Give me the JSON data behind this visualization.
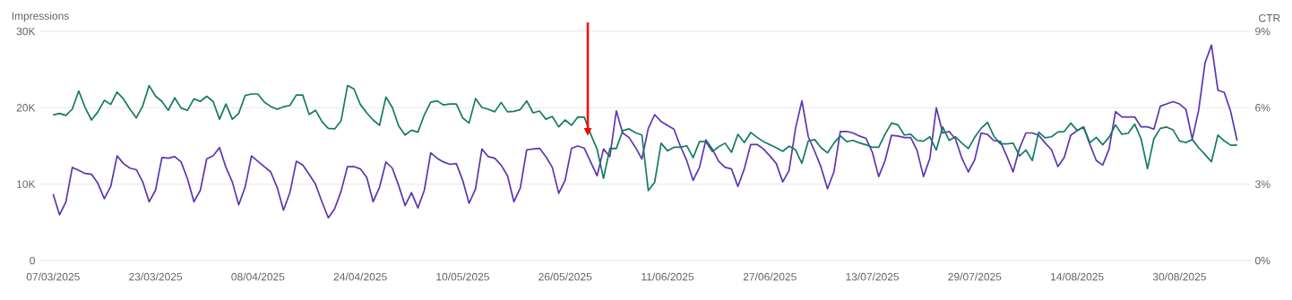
{
  "chart_data": {
    "type": "line",
    "ylabel": "Impressions",
    "y2label": "CTR",
    "x": [
      "2025-03-07",
      "2025-03-08",
      "2025-03-09",
      "2025-03-10",
      "2025-03-11",
      "2025-03-12",
      "2025-03-13",
      "2025-03-14",
      "2025-03-15",
      "2025-03-16",
      "2025-03-17",
      "2025-03-18",
      "2025-03-19",
      "2025-03-20",
      "2025-03-21",
      "2025-03-22",
      "2025-03-23",
      "2025-03-24",
      "2025-03-25",
      "2025-03-26",
      "2025-03-27",
      "2025-03-28",
      "2025-03-29",
      "2025-03-30",
      "2025-03-31",
      "2025-04-01",
      "2025-04-02",
      "2025-04-03",
      "2025-04-04",
      "2025-04-05",
      "2025-04-06",
      "2025-04-07",
      "2025-04-08",
      "2025-04-09",
      "2025-04-10",
      "2025-04-11",
      "2025-04-12",
      "2025-04-13",
      "2025-04-14",
      "2025-04-15",
      "2025-04-16",
      "2025-04-17",
      "2025-04-18",
      "2025-04-19",
      "2025-04-20",
      "2025-04-21",
      "2025-04-22",
      "2025-04-23",
      "2025-04-24",
      "2025-04-25",
      "2025-04-26",
      "2025-04-27",
      "2025-04-28",
      "2025-04-29",
      "2025-04-30",
      "2025-05-01",
      "2025-05-02",
      "2025-05-03",
      "2025-05-04",
      "2025-05-05",
      "2025-05-06",
      "2025-05-07",
      "2025-05-08",
      "2025-05-09",
      "2025-05-10",
      "2025-05-11",
      "2025-05-12",
      "2025-05-13",
      "2025-05-14",
      "2025-05-15",
      "2025-05-16",
      "2025-05-17",
      "2025-05-18",
      "2025-05-19",
      "2025-05-20",
      "2025-05-21",
      "2025-05-22",
      "2025-05-23",
      "2025-05-24",
      "2025-05-25",
      "2025-05-26",
      "2025-05-27",
      "2025-05-28",
      "2025-05-29",
      "2025-05-30",
      "2025-05-31",
      "2025-06-01",
      "2025-06-02",
      "2025-06-03",
      "2025-06-04",
      "2025-06-05",
      "2025-06-06",
      "2025-06-07",
      "2025-06-08",
      "2025-06-09",
      "2025-06-10",
      "2025-06-11",
      "2025-06-12",
      "2025-06-13",
      "2025-06-14",
      "2025-06-15",
      "2025-06-16",
      "2025-06-17",
      "2025-06-18",
      "2025-06-19",
      "2025-06-20",
      "2025-06-21",
      "2025-06-22",
      "2025-06-23",
      "2025-06-24",
      "2025-06-25",
      "2025-06-26",
      "2025-06-27",
      "2025-06-28",
      "2025-06-29",
      "2025-06-30",
      "2025-07-01",
      "2025-07-02",
      "2025-07-03",
      "2025-07-04",
      "2025-07-05",
      "2025-07-06",
      "2025-07-07",
      "2025-07-08",
      "2025-07-09",
      "2025-07-10",
      "2025-07-11",
      "2025-07-12",
      "2025-07-13",
      "2025-07-14",
      "2025-07-15",
      "2025-07-16",
      "2025-07-17",
      "2025-07-18",
      "2025-07-19",
      "2025-07-20",
      "2025-07-21",
      "2025-07-22",
      "2025-07-23",
      "2025-07-24",
      "2025-07-25",
      "2025-07-26",
      "2025-07-27",
      "2025-07-28",
      "2025-07-29",
      "2025-07-30",
      "2025-07-31",
      "2025-08-01",
      "2025-08-02",
      "2025-08-03",
      "2025-08-04",
      "2025-08-05",
      "2025-08-06",
      "2025-08-07",
      "2025-08-08",
      "2025-08-09",
      "2025-08-10",
      "2025-08-11",
      "2025-08-12",
      "2025-08-13",
      "2025-08-14",
      "2025-08-15",
      "2025-08-16",
      "2025-08-17",
      "2025-08-18",
      "2025-08-19",
      "2025-08-20",
      "2025-08-21",
      "2025-08-22",
      "2025-08-23",
      "2025-08-24",
      "2025-08-25",
      "2025-08-26",
      "2025-08-27",
      "2025-08-28",
      "2025-08-29",
      "2025-08-30",
      "2025-08-31",
      "2025-09-01",
      "2025-09-02",
      "2025-09-03",
      "2025-09-04",
      "2025-09-05",
      "2025-09-06",
      "2025-09-07",
      "2025-09-08"
    ],
    "series": [
      {
        "color": "#5e35b1",
        "values": [
          8700,
          6000,
          7700,
          12200,
          11800,
          11400,
          11300,
          10100,
          8100,
          9700,
          13700,
          12700,
          12100,
          11900,
          10300,
          7700,
          9200,
          13500,
          13400,
          13600,
          12900,
          10700,
          7700,
          9200,
          13300,
          13700,
          14800,
          12200,
          10300,
          7300,
          9600,
          13700,
          13000,
          12300,
          11600,
          9600,
          6600,
          8900,
          13000,
          12500,
          11300,
          10000,
          7700,
          5600,
          6800,
          9100,
          12300,
          12300,
          12000,
          10900,
          7700,
          9600,
          12900,
          12100,
          9800,
          7200,
          8900,
          6900,
          9200,
          14100,
          13400,
          12900,
          12600,
          12700,
          10500,
          7500,
          9400,
          14600,
          13600,
          13400,
          12500,
          11100,
          7700,
          9500,
          14500,
          14600,
          14700,
          13600,
          12200,
          8800,
          10500,
          14700,
          15000,
          14700,
          12900,
          11100,
          14600,
          13600,
          19600,
          16700,
          16100,
          14800,
          13300,
          17300,
          19100,
          18200,
          17700,
          17200,
          15000,
          13100,
          10500,
          12200,
          15800,
          14600,
          13000,
          12200,
          12000,
          9700,
          12000,
          15200,
          15200,
          14600,
          13700,
          12700,
          10300,
          11800,
          17300,
          20900,
          16200,
          14300,
          12200,
          9400,
          11600,
          16900,
          16900,
          16700,
          16300,
          16000,
          14200,
          11000,
          13100,
          16400,
          16300,
          16100,
          16100,
          14400,
          11000,
          13400,
          20000,
          16700,
          16900,
          15900,
          13400,
          11600,
          13200,
          16700,
          16500,
          15700,
          15600,
          13700,
          11600,
          14700,
          16700,
          16700,
          16400,
          15400,
          14500,
          12300,
          13500,
          16400,
          17000,
          17500,
          15200,
          13100,
          12500,
          14600,
          19500,
          18800,
          18800,
          18800,
          17500,
          17500,
          17200,
          20200,
          20500,
          20800,
          20500,
          19800,
          15900,
          19700,
          25900,
          28200,
          22300,
          22000,
          19500,
          15700
        ]
      },
      {
        "color": "#137a63",
        "axis": "y2",
        "values": [
          5.72,
          5.78,
          5.7,
          5.95,
          6.66,
          6.01,
          5.52,
          5.84,
          6.29,
          6.13,
          6.62,
          6.34,
          5.95,
          5.6,
          6.07,
          6.87,
          6.46,
          6.25,
          5.9,
          6.39,
          5.99,
          5.9,
          6.35,
          6.25,
          6.45,
          6.25,
          5.55,
          6.15,
          5.55,
          5.78,
          6.48,
          6.54,
          6.54,
          6.22,
          6.05,
          5.94,
          6.04,
          6.09,
          6.5,
          6.5,
          5.74,
          5.9,
          5.46,
          5.19,
          5.17,
          5.49,
          6.87,
          6.74,
          6.13,
          5.8,
          5.52,
          5.31,
          6.42,
          6.01,
          5.28,
          4.93,
          5.12,
          5.04,
          5.72,
          6.22,
          6.27,
          6.11,
          6.15,
          6.15,
          5.6,
          5.4,
          6.36,
          6.01,
          5.94,
          5.84,
          6.21,
          5.84,
          5.86,
          5.93,
          6.27,
          5.8,
          5.87,
          5.55,
          5.66,
          5.25,
          5.52,
          5.31,
          5.64,
          5.63,
          4.96,
          4.37,
          3.23,
          4.41,
          4.4,
          5.1,
          5.17,
          5.02,
          4.93,
          2.75,
          3.08,
          4.61,
          4.31,
          4.45,
          4.45,
          4.51,
          4.04,
          4.67,
          4.67,
          4.28,
          4.47,
          4.61,
          4.25,
          4.96,
          4.63,
          5.03,
          4.84,
          4.67,
          4.55,
          4.43,
          4.29,
          4.49,
          4.35,
          3.82,
          4.7,
          4.75,
          4.43,
          4.23,
          4.61,
          4.9,
          4.67,
          4.72,
          4.62,
          4.55,
          4.45,
          4.45,
          4.96,
          5.4,
          5.33,
          4.93,
          4.96,
          4.72,
          4.69,
          4.86,
          4.34,
          5.25,
          4.72,
          4.86,
          4.61,
          4.4,
          4.84,
          5.19,
          5.43,
          4.88,
          4.58,
          4.58,
          4.61,
          4.11,
          4.34,
          3.93,
          5.04,
          4.82,
          4.86,
          5.05,
          5.07,
          5.4,
          5.11,
          5.25,
          4.63,
          4.84,
          4.55,
          4.84,
          5.33,
          4.96,
          5.0,
          5.36,
          4.78,
          3.61,
          4.78,
          5.19,
          5.24,
          5.13,
          4.7,
          4.63,
          4.75,
          4.43,
          4.16,
          3.88,
          4.93,
          4.7,
          4.53,
          4.53
        ]
      }
    ],
    "xlim": [
      "2025-03-05",
      "2025-09-10"
    ],
    "xticks": [
      {
        "value": "2025-03-07",
        "label": "07/03/2025"
      },
      {
        "value": "2025-03-23",
        "label": "23/03/2025"
      },
      {
        "value": "2025-04-08",
        "label": "08/04/2025"
      },
      {
        "value": "2025-04-24",
        "label": "24/04/2025"
      },
      {
        "value": "2025-05-10",
        "label": "10/05/2025"
      },
      {
        "value": "2025-05-26",
        "label": "26/05/2025"
      },
      {
        "value": "2025-06-11",
        "label": "11/06/2025"
      },
      {
        "value": "2025-06-27",
        "label": "27/06/2025"
      },
      {
        "value": "2025-07-13",
        "label": "13/07/2025"
      },
      {
        "value": "2025-07-29",
        "label": "29/07/2025"
      },
      {
        "value": "2025-08-14",
        "label": "14/08/2025"
      },
      {
        "value": "2025-08-30",
        "label": "30/08/2025"
      }
    ],
    "ylim": [
      0,
      30000
    ],
    "yticks": [
      0,
      {
        "value": 10000,
        "label": "10K"
      },
      {
        "value": 20000,
        "label": "20K"
      },
      {
        "value": 30000,
        "label": "30K"
      }
    ],
    "y2lim": [
      0,
      9
    ],
    "y2ticks": [
      {
        "value": 0,
        "label": "0%"
      },
      {
        "value": 3,
        "label": "3%"
      },
      {
        "value": 6,
        "label": "6%"
      },
      {
        "value": 9,
        "label": "9%"
      }
    ],
    "grid": "y"
  }
}
